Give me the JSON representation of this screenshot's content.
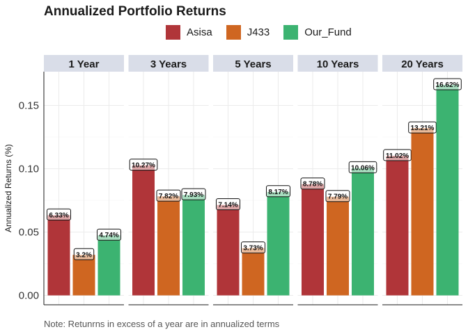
{
  "chart_data": {
    "type": "bar",
    "title": "Annualized Portfolio Returns",
    "ylabel": "Annualized Returns (%)",
    "xlabel": "",
    "ylim": [
      0,
      0.175
    ],
    "yticks": [
      "0.00",
      "0.05",
      "0.10",
      "0.15"
    ],
    "ytick_values": [
      0,
      0.05,
      0.1,
      0.15
    ],
    "grid": true,
    "legend_position": "top",
    "series_names": [
      "Asisa",
      "J433",
      "Our_Fund"
    ],
    "colors": {
      "Asisa": "#b03539",
      "J433": "#cf6621",
      "Our_Fund": "#3cb371"
    },
    "panels": [
      {
        "label": "1 Year",
        "values": [
          0.0633,
          0.032,
          0.0474
        ],
        "labels": [
          "6.33%",
          "3.2%",
          "4.74%"
        ]
      },
      {
        "label": "3 Years",
        "values": [
          0.1027,
          0.0782,
          0.0793
        ],
        "labels": [
          "10.27%",
          "7.82%",
          "7.93%"
        ]
      },
      {
        "label": "5 Years",
        "values": [
          0.0714,
          0.0373,
          0.0817
        ],
        "labels": [
          "7.14%",
          "3.73%",
          "8.17%"
        ]
      },
      {
        "label": "10 Years",
        "values": [
          0.0878,
          0.0779,
          0.1006
        ],
        "labels": [
          "8.78%",
          "7.79%",
          "10.06%"
        ]
      },
      {
        "label": "20 Years",
        "values": [
          0.1102,
          0.1321,
          0.1662
        ],
        "labels": [
          "11.02%",
          "13.21%",
          "16.62%"
        ]
      }
    ]
  },
  "legend": {
    "items": [
      {
        "label": "Asisa",
        "color": "#b03539"
      },
      {
        "label": "J433",
        "color": "#cf6621"
      },
      {
        "label": "Our_Fund",
        "color": "#3cb371"
      }
    ]
  },
  "note": "Note: Retunrns in excess of a year are in annualized terms"
}
